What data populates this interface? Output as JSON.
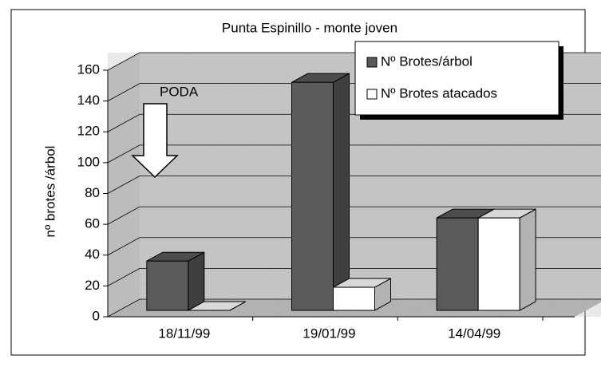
{
  "chart_data": {
    "type": "bar3d",
    "title": "Punta Espinillo - monte joven",
    "y_label": "nº brotes /árbol",
    "annotation": "PODA",
    "categories": [
      "18/11/99",
      "19/01/99",
      "14/04/99"
    ],
    "series": [
      {
        "name": "Nº Brotes/árbol",
        "color": "#5a5a5a",
        "values": [
          32,
          148,
          60
        ]
      },
      {
        "name": "Nº Brotes atacados",
        "color": "#ffffff",
        "values": [
          0,
          15,
          60
        ]
      }
    ],
    "ylim": [
      0,
      160
    ],
    "yticks": [
      0,
      20,
      40,
      60,
      80,
      100,
      120,
      140,
      160
    ],
    "grid": true,
    "legend": "top-right"
  }
}
